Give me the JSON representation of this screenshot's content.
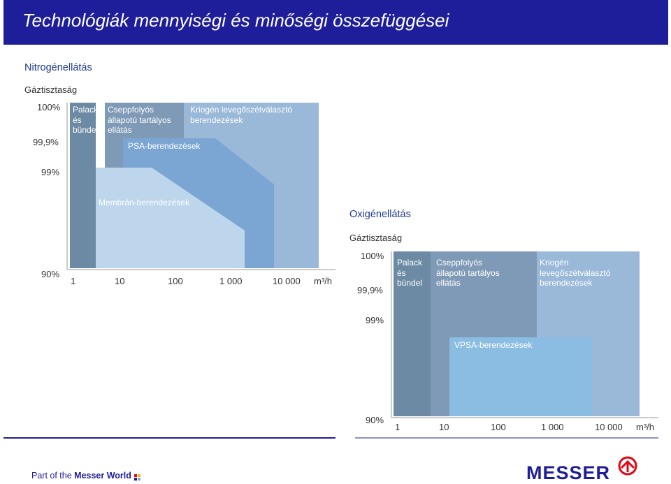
{
  "header": {
    "title": "Technológiák mennyiségi és minőségi összefüggései"
  },
  "nitrogen": {
    "section_title": "Nitrogénellátás",
    "y_title": "Gáztisztaság",
    "y_ticks": [
      "100%",
      "99,9%",
      "99%",
      "90%"
    ],
    "x_ticks": [
      "1",
      "10",
      "100",
      "1 000",
      "10 000"
    ],
    "x_unit": "m³/h",
    "bands": [
      {
        "label_lines": [
          "Palack",
          "és",
          "bündel"
        ],
        "color": "#6d8aa4"
      },
      {
        "label_lines": [
          "Cseppfolyós",
          "állapotú tartályos",
          "ellátás"
        ],
        "color": "#7f9ab6"
      },
      {
        "label_lines": [
          "Kriogén levegőszétválasztó",
          "berendezések"
        ],
        "color": "#9ab8d8"
      }
    ],
    "regions": [
      {
        "label": "PSA-berendezések",
        "color": "#7ba6d3"
      },
      {
        "label": "Membrán-berendezések",
        "color": "#bed6ec"
      }
    ]
  },
  "oxygen": {
    "section_title": "Oxigénellátás",
    "y_title": "Gáztisztaság",
    "y_ticks": [
      "100%",
      "99,9%",
      "99%",
      "90%"
    ],
    "x_ticks": [
      "1",
      "10",
      "100",
      "1 000",
      "10 000"
    ],
    "x_unit": "m³/h",
    "bands": [
      {
        "label_lines": [
          "Palack",
          "és",
          "bündel"
        ],
        "color": "#6d8aa4"
      },
      {
        "label_lines": [
          "Cseppfolyós",
          "állapotú tartályos",
          "ellátás"
        ],
        "color": "#7f9ab6"
      },
      {
        "label_lines": [
          "Kriogén",
          "levegőszétválasztó",
          "berendezések"
        ],
        "color": "#9ab8d8"
      }
    ],
    "regions": [
      {
        "label": "VPSA-berendezések",
        "color": "#8bbde3"
      }
    ]
  },
  "footer": {
    "part_of_prefix": "Part of the ",
    "part_of_brand": "Messer World",
    "logo_text": "MESSER"
  }
}
